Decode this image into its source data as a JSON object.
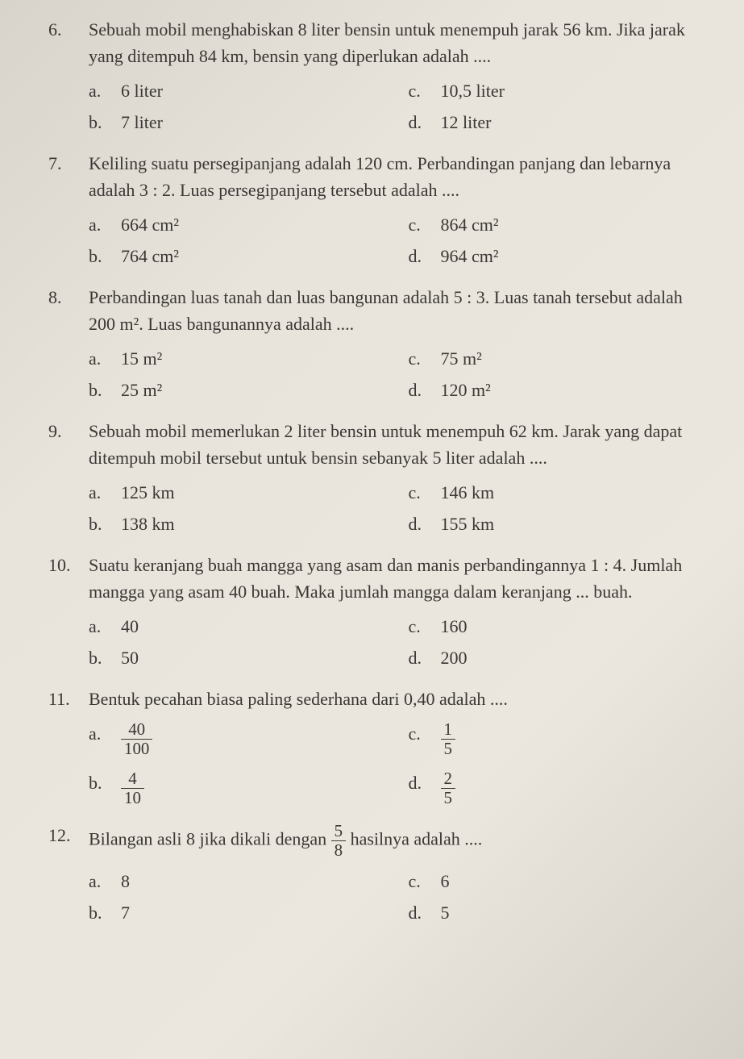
{
  "questions": [
    {
      "num": "6.",
      "text": "Sebuah mobil menghabiskan 8 liter bensin untuk menempuh jarak 56 km. Jika jarak yang ditempuh 84 km, bensin yang diperlukan adalah ....",
      "options": {
        "a": "6 liter",
        "b": "7 liter",
        "c": "10,5 liter",
        "d": "12 liter"
      }
    },
    {
      "num": "7.",
      "text": "Keliling suatu persegipanjang adalah 120 cm. Perbandingan panjang dan lebarnya adalah 3 : 2. Luas persegipanjang tersebut adalah ....",
      "options": {
        "a": "664 cm²",
        "b": "764 cm²",
        "c": "864 cm²",
        "d": "964 cm²"
      }
    },
    {
      "num": "8.",
      "text": "Perbandingan luas tanah dan luas bangunan adalah 5 : 3. Luas tanah tersebut adalah 200 m². Luas bangunannya adalah ....",
      "options": {
        "a": "15 m²",
        "b": "25 m²",
        "c": "75 m²",
        "d": "120 m²"
      }
    },
    {
      "num": "9.",
      "text": "Sebuah mobil memerlukan 2 liter bensin untuk menempuh 62 km. Jarak yang dapat ditempuh mobil tersebut untuk bensin sebanyak 5 liter adalah ....",
      "options": {
        "a": "125 km",
        "b": "138 km",
        "c": "146 km",
        "d": "155 km"
      }
    },
    {
      "num": "10.",
      "text": "Suatu keranjang buah mangga yang asam dan manis perbandingannya 1 : 4. Jumlah mangga yang asam 40 buah. Maka jumlah mangga dalam keranjang ... buah.",
      "options": {
        "a": "40",
        "b": "50",
        "c": "160",
        "d": "200"
      }
    },
    {
      "num": "11.",
      "text": "Bentuk pecahan biasa paling sederhana dari 0,40 adalah ....",
      "options_frac": {
        "a": {
          "num": "40",
          "den": "100"
        },
        "b": {
          "num": "4",
          "den": "10"
        },
        "c": {
          "num": "1",
          "den": "5"
        },
        "d": {
          "num": "2",
          "den": "5"
        }
      }
    },
    {
      "num": "12.",
      "text_parts": {
        "before": "Bilangan asli 8 jika dikali dengan ",
        "frac": {
          "num": "5",
          "den": "8"
        },
        "after": " hasilnya adalah ...."
      },
      "options": {
        "a": "8",
        "b": "7",
        "c": "6",
        "d": "5"
      }
    }
  ],
  "colors": {
    "text": "#3a3734",
    "background_start": "#d8d4cc",
    "background_end": "#ebe7df"
  },
  "typography": {
    "base_fontsize": 22,
    "font_family": "Georgia, Times New Roman, serif"
  }
}
